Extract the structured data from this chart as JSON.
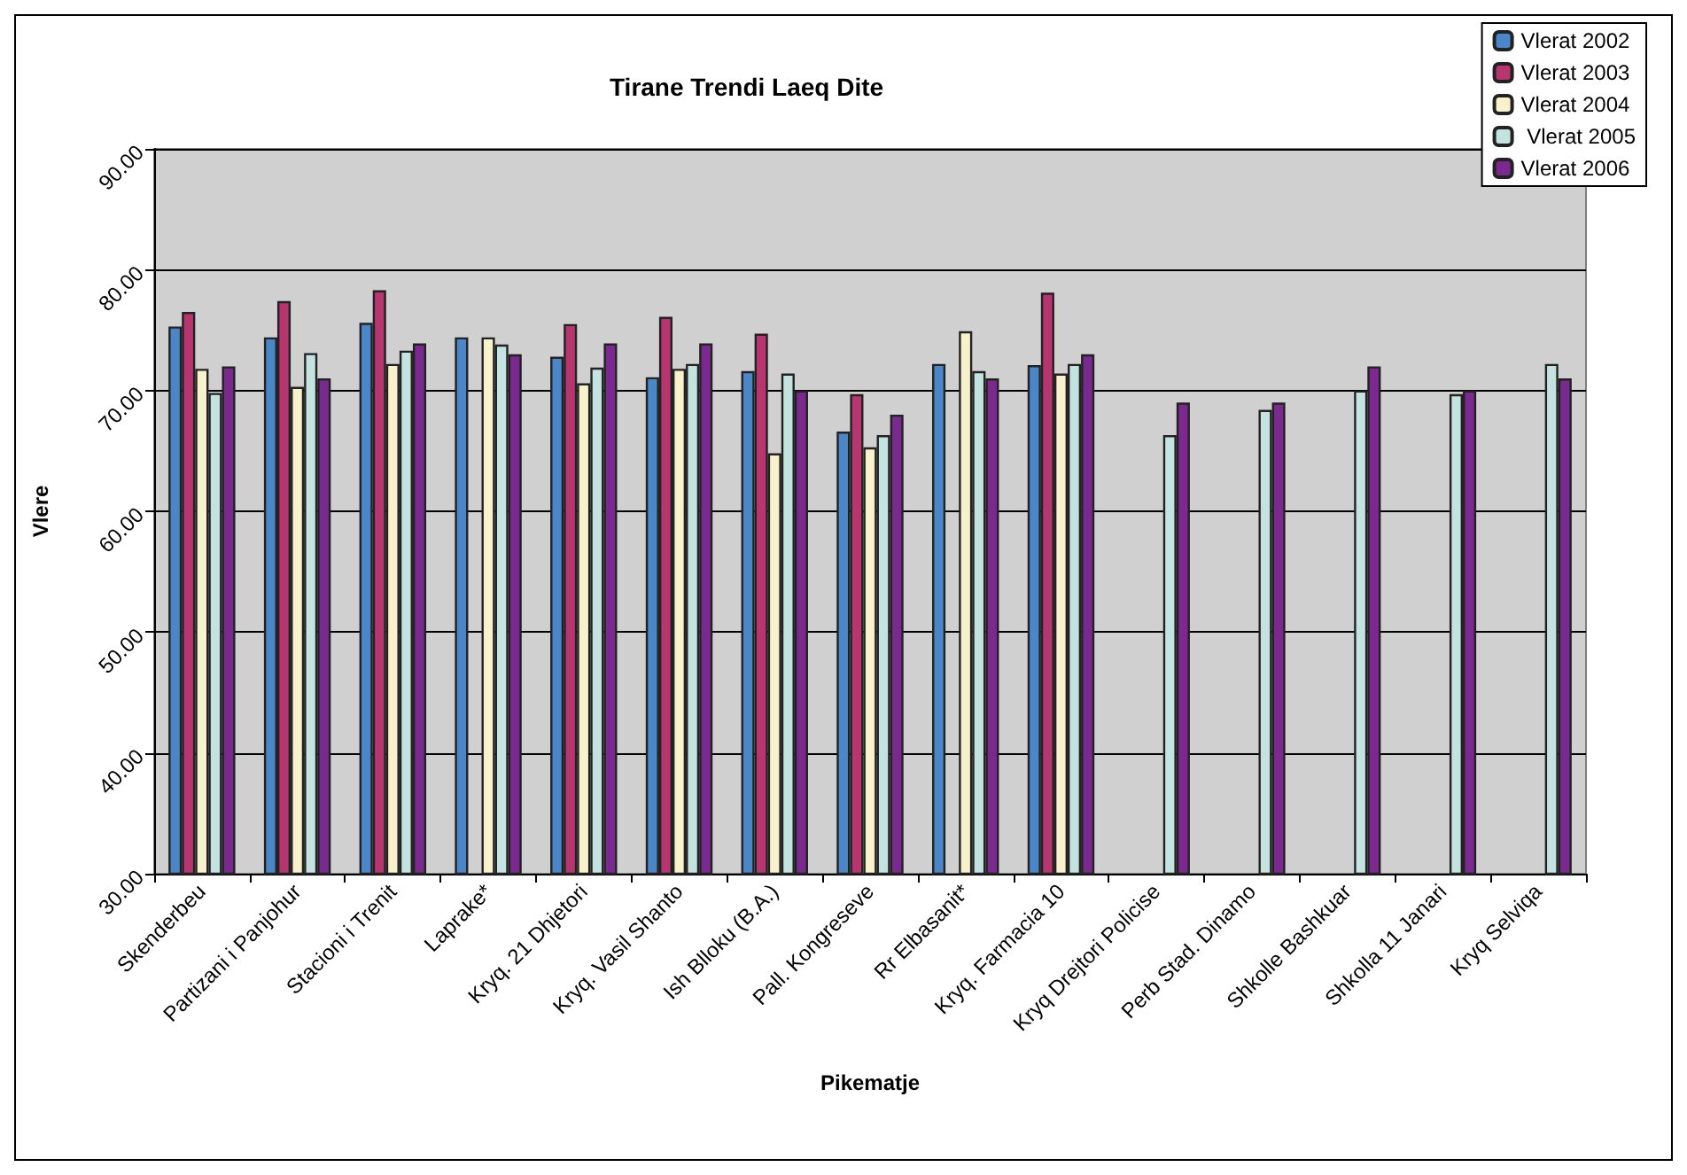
{
  "chart_data": {
    "type": "bar",
    "title": "Tirane Trendi Laeq Dite",
    "xlabel": "Pikematje",
    "ylabel": "Vlere",
    "categories": [
      "Skenderbeu",
      "Partizani i Panjohur",
      "Stacioni i Trenit",
      "Laprake*",
      "Kryq. 21 Dhjetori",
      "Kryq. Vasil Shanto",
      "Ish Blloku (B.A.)",
      "Pall. Kongreseve",
      "Rr Elbasanit*",
      "Kryq. Farmacia 10",
      "Kryq Drejtori Policise",
      "Perb Stad. Dinamo",
      "Shkolle Bashkuar",
      "Shkolla 11 Janari",
      "Kryq Selviqa"
    ],
    "series": [
      {
        "name": "Vlerat 2002",
        "color": "#4a86c8",
        "values": [
          75.3,
          74.4,
          75.6,
          74.4,
          72.8,
          71.1,
          71.6,
          66.6,
          72.2,
          72.1,
          null,
          null,
          null,
          null,
          null
        ]
      },
      {
        "name": "Vlerat 2003",
        "color": "#b8366f",
        "values": [
          76.5,
          77.4,
          78.3,
          null,
          75.5,
          76.1,
          74.7,
          69.7,
          null,
          78.1,
          null,
          null,
          null,
          null,
          null
        ]
      },
      {
        "name": "Vlerat 2004",
        "color": "#f8f2cc",
        "values": [
          71.8,
          70.3,
          72.2,
          74.4,
          70.6,
          71.8,
          64.8,
          65.3,
          74.9,
          71.4,
          null,
          null,
          null,
          null,
          null
        ]
      },
      {
        "name": " Vlerat 2005",
        "color": "#c3e2e0",
        "values": [
          69.8,
          73.1,
          73.3,
          73.8,
          71.9,
          72.2,
          71.4,
          66.3,
          71.6,
          72.2,
          66.3,
          68.4,
          70.0,
          69.7,
          72.2
        ]
      },
      {
        "name": "Vlerat 2006",
        "color": "#7a2a8e",
        "values": [
          72.0,
          71.0,
          73.9,
          73.0,
          73.9,
          73.9,
          70.0,
          68.0,
          71.0,
          73.0,
          69.0,
          69.0,
          72.0,
          70.0,
          71.0
        ]
      }
    ],
    "ylim": [
      30,
      90
    ],
    "yticks": [
      {
        "value": 30,
        "label": "30.00"
      },
      {
        "value": 40,
        "label": "40.00"
      },
      {
        "value": 50,
        "label": "50.00"
      },
      {
        "value": 60,
        "label": "60.00"
      },
      {
        "value": 70,
        "label": "70.00"
      },
      {
        "value": 80,
        "label": "80.00"
      },
      {
        "value": 90,
        "label": "90.00"
      }
    ],
    "grid": "y",
    "legend": "top right"
  }
}
